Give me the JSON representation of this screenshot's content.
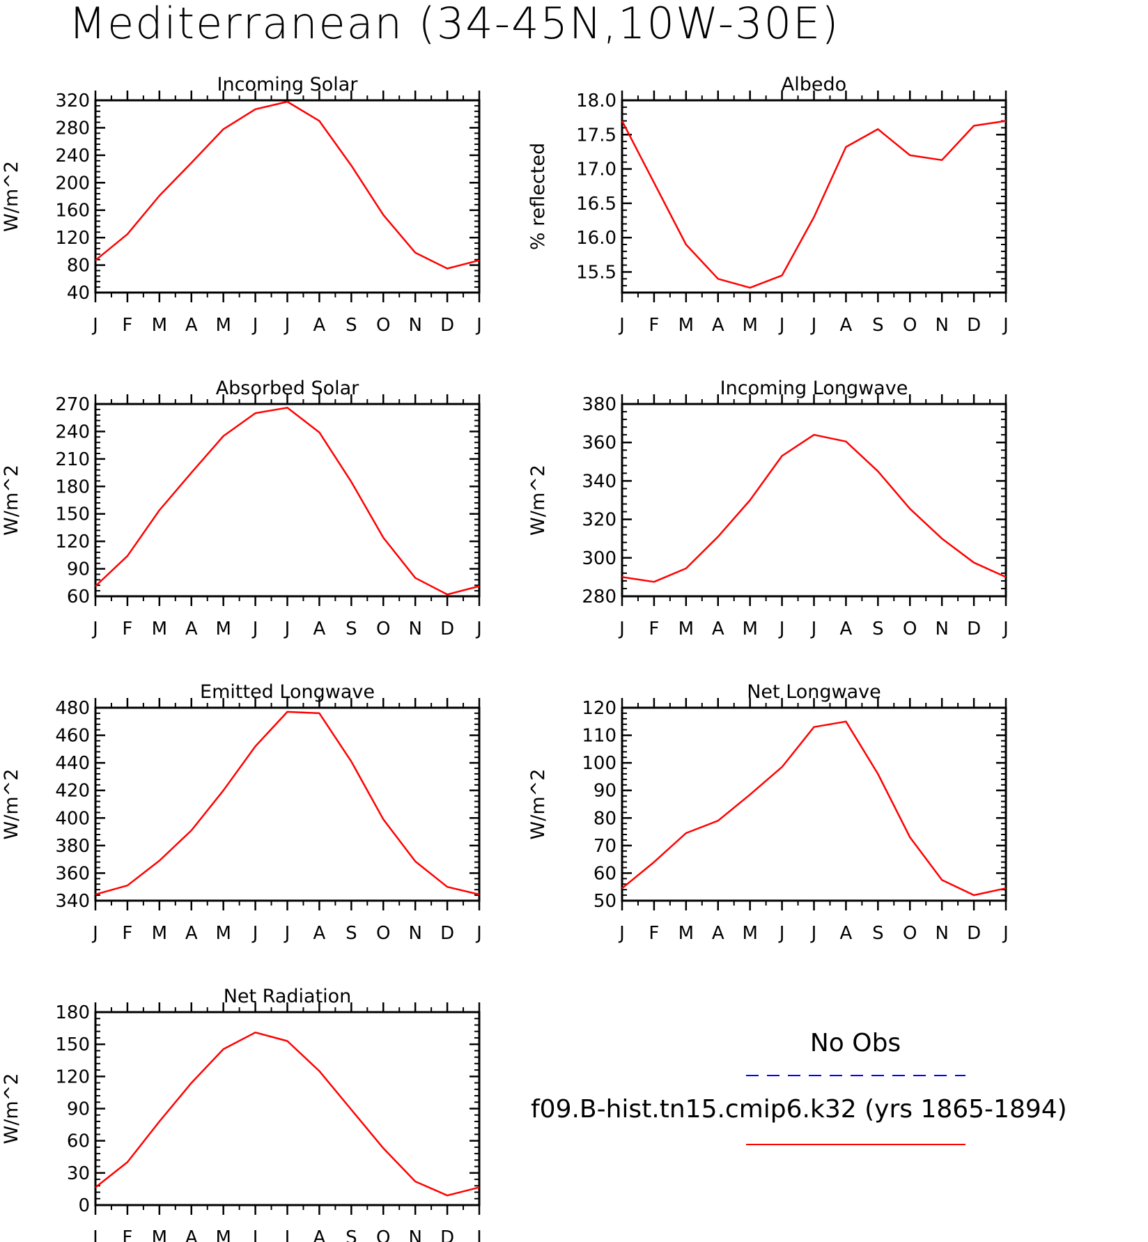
{
  "title": "Mediterranean (34-45N,10W-30E)",
  "months": [
    "J",
    "F",
    "M",
    "A",
    "M",
    "J",
    "J",
    "A",
    "S",
    "O",
    "N",
    "D",
    "J"
  ],
  "colors": {
    "model": "#ff0000",
    "obs": "#0000ff",
    "axis": "#000000"
  },
  "legend": {
    "obs_label": "No Obs",
    "model_label": "f09.B-hist.tn15.cmip6.k32 (yrs 1865-1894)"
  },
  "chart_data": [
    {
      "type": "line",
      "title": "Incoming Solar",
      "ylabel": "W/m^2",
      "ylim": [
        40,
        320
      ],
      "yticks": [
        "40",
        "80",
        "120",
        "160",
        "200",
        "240",
        "280",
        "320"
      ],
      "series": [
        {
          "values": [
            87,
            125,
            181,
            229,
            278,
            307,
            318,
            290,
            225,
            153,
            98,
            75,
            87
          ]
        }
      ]
    },
    {
      "type": "line",
      "title": "Albedo",
      "ylabel": "% reflected",
      "ylim": [
        15.2,
        18.0
      ],
      "yticks": [
        "15.5",
        "16.0",
        "16.5",
        "17.0",
        "17.5",
        "18.0"
      ],
      "series": [
        {
          "values": [
            17.7,
            16.8,
            15.9,
            15.4,
            15.27,
            15.45,
            16.3,
            17.32,
            17.58,
            17.2,
            17.13,
            17.63,
            17.7
          ]
        }
      ]
    },
    {
      "type": "line",
      "title": "Absorbed Solar",
      "ylabel": "W/m^2",
      "ylim": [
        60,
        270
      ],
      "yticks": [
        "60",
        "90",
        "120",
        "150",
        "180",
        "210",
        "240",
        "270"
      ],
      "series": [
        {
          "values": [
            71,
            104,
            154,
            195,
            235,
            260,
            266,
            239,
            185,
            124,
            80,
            62,
            71
          ]
        }
      ]
    },
    {
      "type": "line",
      "title": "Incoming Longwave",
      "ylabel": "W/m^2",
      "ylim": [
        280,
        380
      ],
      "yticks": [
        "280",
        "300",
        "320",
        "340",
        "360",
        "380"
      ],
      "series": [
        {
          "values": [
            290,
            287.5,
            294.5,
            311,
            330,
            353,
            364,
            360.5,
            345,
            325.5,
            310,
            297.5,
            290
          ]
        }
      ]
    },
    {
      "type": "line",
      "title": "Emitted Longwave",
      "ylabel": "W/m^2",
      "ylim": [
        340,
        480
      ],
      "yticks": [
        "340",
        "360",
        "380",
        "400",
        "420",
        "440",
        "460",
        "480"
      ],
      "series": [
        {
          "values": [
            344.5,
            351,
            369,
            391,
            420,
            452,
            477,
            476,
            441,
            399,
            368.5,
            350,
            344.5
          ]
        }
      ]
    },
    {
      "type": "line",
      "title": "Net Longwave",
      "ylabel": "W/m^2",
      "ylim": [
        50,
        120
      ],
      "yticks": [
        "50",
        "60",
        "70",
        "80",
        "90",
        "100",
        "110",
        "120"
      ],
      "series": [
        {
          "values": [
            54.5,
            64,
            74.5,
            79,
            88.5,
            98.5,
            113,
            115,
            96,
            73,
            57.5,
            52,
            54.5
          ]
        }
      ]
    },
    {
      "type": "line",
      "title": "Net Radiation",
      "ylabel": "W/m^2",
      "ylim": [
        0,
        180
      ],
      "yticks": [
        "0",
        "30",
        "60",
        "90",
        "120",
        "150",
        "180"
      ],
      "series": [
        {
          "values": [
            16.5,
            40,
            78,
            114,
            145.5,
            161,
            153,
            125,
            89,
            53,
            22,
            9,
            16.5
          ]
        }
      ]
    }
  ]
}
